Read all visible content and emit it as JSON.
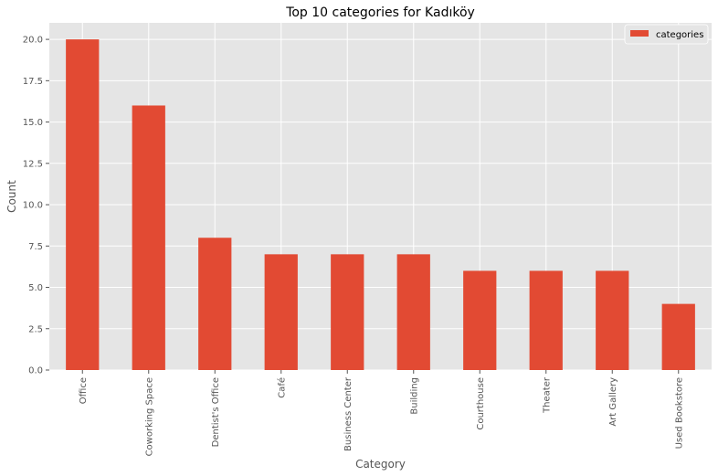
{
  "chart_data": {
    "type": "bar",
    "title": "Top 10 categories for Kadıköy",
    "xlabel": "Category",
    "ylabel": "Count",
    "categories": [
      "Office",
      "Coworking Space",
      "Dentist's Office",
      "Café",
      "Business Center",
      "Building",
      "Courthouse",
      "Theater",
      "Art Gallery",
      "Used Bookstore"
    ],
    "series": [
      {
        "name": "categories",
        "values": [
          20,
          16,
          8,
          7,
          7,
          7,
          6,
          6,
          6,
          4
        ]
      }
    ],
    "ylim": [
      0,
      21
    ],
    "yticks": [
      0.0,
      2.5,
      5.0,
      7.5,
      10.0,
      12.5,
      15.0,
      17.5,
      20.0
    ],
    "ytick_labels": [
      "0.0",
      "2.5",
      "5.0",
      "7.5",
      "10.0",
      "12.5",
      "15.0",
      "17.5",
      "20.0"
    ],
    "grid": true,
    "legend_position": "top-right",
    "colors": {
      "bar": "#e24a33",
      "background": "#e5e5e5",
      "grid": "#ffffff"
    }
  }
}
